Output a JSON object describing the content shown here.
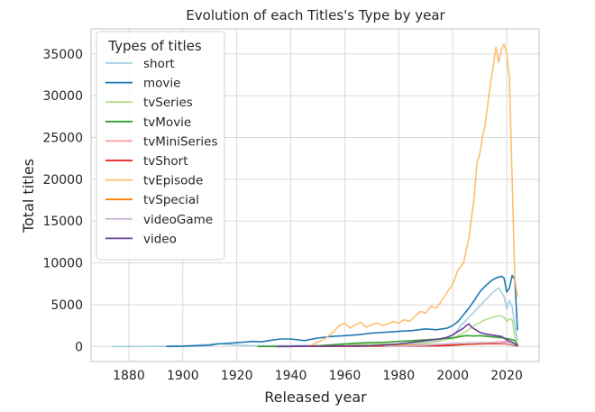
{
  "chart_data": {
    "type": "line",
    "title": "Evolution of each Titles's Type by year",
    "xlabel": "Released year",
    "ylabel": "Total titles",
    "xlim": [
      1866,
      2032
    ],
    "ylim": [
      -1800,
      38000
    ],
    "xticks": [
      1880,
      1900,
      1920,
      1940,
      1960,
      1980,
      2000,
      2020
    ],
    "yticks": [
      0,
      5000,
      10000,
      15000,
      20000,
      25000,
      30000,
      35000
    ],
    "grid": true,
    "legend": {
      "title": "Types of titles",
      "placement": "top-left"
    },
    "series": [
      {
        "name": "short",
        "color": "#a6cee3",
        "points": [
          [
            1874,
            0
          ],
          [
            1890,
            10
          ],
          [
            1900,
            80
          ],
          [
            1905,
            150
          ],
          [
            1910,
            250
          ],
          [
            1913,
            350
          ],
          [
            1918,
            200
          ],
          [
            1925,
            100
          ],
          [
            1935,
            80
          ],
          [
            1950,
            120
          ],
          [
            1960,
            200
          ],
          [
            1970,
            200
          ],
          [
            1980,
            250
          ],
          [
            1990,
            400
          ],
          [
            1995,
            600
          ],
          [
            2000,
            1200
          ],
          [
            2003,
            2500
          ],
          [
            2006,
            3500
          ],
          [
            2009,
            4500
          ],
          [
            2012,
            5500
          ],
          [
            2015,
            6500
          ],
          [
            2017,
            7000
          ],
          [
            2019,
            6000
          ],
          [
            2020,
            4500
          ],
          [
            2021,
            5500
          ],
          [
            2022,
            4800
          ],
          [
            2023,
            2500
          ],
          [
            2024,
            800
          ]
        ]
      },
      {
        "name": "movie",
        "color": "#1f78b4",
        "points": [
          [
            1894,
            0
          ],
          [
            1900,
            20
          ],
          [
            1906,
            100
          ],
          [
            1910,
            150
          ],
          [
            1913,
            300
          ],
          [
            1918,
            400
          ],
          [
            1922,
            500
          ],
          [
            1926,
            600
          ],
          [
            1929,
            550
          ],
          [
            1932,
            700
          ],
          [
            1936,
            900
          ],
          [
            1940,
            900
          ],
          [
            1945,
            700
          ],
          [
            1950,
            1000
          ],
          [
            1955,
            1200
          ],
          [
            1960,
            1300
          ],
          [
            1965,
            1400
          ],
          [
            1970,
            1600
          ],
          [
            1975,
            1700
          ],
          [
            1980,
            1800
          ],
          [
            1985,
            1900
          ],
          [
            1990,
            2100
          ],
          [
            1994,
            2000
          ],
          [
            1998,
            2200
          ],
          [
            2000,
            2500
          ],
          [
            2002,
            3000
          ],
          [
            2004,
            3800
          ],
          [
            2006,
            4600
          ],
          [
            2008,
            5500
          ],
          [
            2010,
            6500
          ],
          [
            2012,
            7200
          ],
          [
            2014,
            7800
          ],
          [
            2016,
            8200
          ],
          [
            2018,
            8400
          ],
          [
            2019,
            8200
          ],
          [
            2020,
            6500
          ],
          [
            2021,
            7000
          ],
          [
            2022,
            8500
          ],
          [
            2023,
            8000
          ],
          [
            2024,
            2000
          ]
        ]
      },
      {
        "name": "tvSeries",
        "color": "#b2df8a",
        "points": [
          [
            1945,
            0
          ],
          [
            1950,
            100
          ],
          [
            1960,
            200
          ],
          [
            1970,
            250
          ],
          [
            1980,
            300
          ],
          [
            1990,
            500
          ],
          [
            1995,
            700
          ],
          [
            2000,
            1000
          ],
          [
            2004,
            1600
          ],
          [
            2008,
            2500
          ],
          [
            2012,
            3200
          ],
          [
            2015,
            3500
          ],
          [
            2017,
            3700
          ],
          [
            2019,
            3500
          ],
          [
            2020,
            3000
          ],
          [
            2021,
            3300
          ],
          [
            2022,
            3200
          ],
          [
            2023,
            1200
          ],
          [
            2024,
            300
          ]
        ]
      },
      {
        "name": "tvMovie",
        "color": "#33a02c",
        "points": [
          [
            1928,
            0
          ],
          [
            1940,
            0
          ],
          [
            1950,
            50
          ],
          [
            1955,
            200
          ],
          [
            1960,
            300
          ],
          [
            1965,
            400
          ],
          [
            1970,
            450
          ],
          [
            1975,
            500
          ],
          [
            1980,
            600
          ],
          [
            1985,
            700
          ],
          [
            1990,
            800
          ],
          [
            1995,
            900
          ],
          [
            2000,
            1000
          ],
          [
            2003,
            1200
          ],
          [
            2005,
            1300
          ],
          [
            2008,
            1250
          ],
          [
            2010,
            1300
          ],
          [
            2013,
            1200
          ],
          [
            2016,
            1100
          ],
          [
            2019,
            1000
          ],
          [
            2021,
            900
          ],
          [
            2023,
            700
          ],
          [
            2024,
            200
          ]
        ]
      },
      {
        "name": "tvMiniSeries",
        "color": "#fb9a99",
        "points": [
          [
            1950,
            0
          ],
          [
            1960,
            20
          ],
          [
            1970,
            60
          ],
          [
            1980,
            100
          ],
          [
            1990,
            150
          ],
          [
            2000,
            250
          ],
          [
            2010,
            400
          ],
          [
            2015,
            500
          ],
          [
            2020,
            600
          ],
          [
            2022,
            500
          ],
          [
            2024,
            100
          ]
        ]
      },
      {
        "name": "tvShort",
        "color": "#e31a1c",
        "points": [
          [
            1935,
            0
          ],
          [
            1945,
            10
          ],
          [
            1955,
            20
          ],
          [
            1970,
            30
          ],
          [
            1985,
            50
          ],
          [
            1995,
            80
          ],
          [
            2000,
            150
          ],
          [
            2005,
            250
          ],
          [
            2010,
            300
          ],
          [
            2015,
            350
          ],
          [
            2020,
            300
          ],
          [
            2024,
            50
          ]
        ]
      },
      {
        "name": "tvEpisode",
        "color": "#fdbf6f",
        "points": [
          [
            1946,
            0
          ],
          [
            1948,
            200
          ],
          [
            1950,
            500
          ],
          [
            1953,
            1000
          ],
          [
            1956,
            1800
          ],
          [
            1958,
            2500
          ],
          [
            1960,
            2800
          ],
          [
            1962,
            2200
          ],
          [
            1964,
            2600
          ],
          [
            1966,
            2900
          ],
          [
            1968,
            2300
          ],
          [
            1970,
            2600
          ],
          [
            1972,
            2800
          ],
          [
            1974,
            2500
          ],
          [
            1976,
            2700
          ],
          [
            1978,
            3000
          ],
          [
            1980,
            2800
          ],
          [
            1982,
            3200
          ],
          [
            1984,
            3000
          ],
          [
            1986,
            3600
          ],
          [
            1988,
            4200
          ],
          [
            1990,
            4000
          ],
          [
            1992,
            4800
          ],
          [
            1994,
            4600
          ],
          [
            1996,
            5500
          ],
          [
            1998,
            6500
          ],
          [
            2000,
            7500
          ],
          [
            2001,
            8300
          ],
          [
            2002,
            9200
          ],
          [
            2003,
            9600
          ],
          [
            2004,
            10000
          ],
          [
            2005,
            11500
          ],
          [
            2006,
            13000
          ],
          [
            2007,
            15500
          ],
          [
            2008,
            18000
          ],
          [
            2009,
            22000
          ],
          [
            2010,
            23000
          ],
          [
            2011,
            25000
          ],
          [
            2012,
            26500
          ],
          [
            2013,
            29000
          ],
          [
            2014,
            31500
          ],
          [
            2015,
            33500
          ],
          [
            2016,
            35800
          ],
          [
            2017,
            34000
          ],
          [
            2018,
            35500
          ],
          [
            2019,
            36200
          ],
          [
            2020,
            35000
          ],
          [
            2021,
            32000
          ],
          [
            2022,
            20000
          ],
          [
            2023,
            8000
          ],
          [
            2024,
            6000
          ]
        ]
      },
      {
        "name": "tvSpecial",
        "color": "#ff7f00",
        "points": [
          [
            1948,
            0
          ],
          [
            1960,
            50
          ],
          [
            1970,
            80
          ],
          [
            1980,
            120
          ],
          [
            1990,
            200
          ],
          [
            2000,
            300
          ],
          [
            2010,
            400
          ],
          [
            2015,
            450
          ],
          [
            2020,
            350
          ],
          [
            2024,
            100
          ]
        ]
      },
      {
        "name": "videoGame",
        "color": "#cab2d6",
        "points": [
          [
            1975,
            0
          ],
          [
            1980,
            30
          ],
          [
            1985,
            80
          ],
          [
            1990,
            150
          ],
          [
            1995,
            250
          ],
          [
            2000,
            350
          ],
          [
            2005,
            400
          ],
          [
            2010,
            450
          ],
          [
            2015,
            450
          ],
          [
            2020,
            400
          ],
          [
            2024,
            100
          ]
        ]
      },
      {
        "name": "video",
        "color": "#6a3d9a",
        "points": [
          [
            1935,
            0
          ],
          [
            1960,
            50
          ],
          [
            1970,
            100
          ],
          [
            1975,
            200
          ],
          [
            1980,
            300
          ],
          [
            1985,
            500
          ],
          [
            1990,
            700
          ],
          [
            1995,
            900
          ],
          [
            1998,
            1100
          ],
          [
            2000,
            1400
          ],
          [
            2002,
            1800
          ],
          [
            2004,
            2200
          ],
          [
            2005,
            2500
          ],
          [
            2006,
            2700
          ],
          [
            2007,
            2300
          ],
          [
            2008,
            2100
          ],
          [
            2010,
            1700
          ],
          [
            2012,
            1500
          ],
          [
            2014,
            1400
          ],
          [
            2016,
            1300
          ],
          [
            2018,
            1200
          ],
          [
            2020,
            800
          ],
          [
            2022,
            500
          ],
          [
            2024,
            100
          ]
        ]
      }
    ]
  }
}
